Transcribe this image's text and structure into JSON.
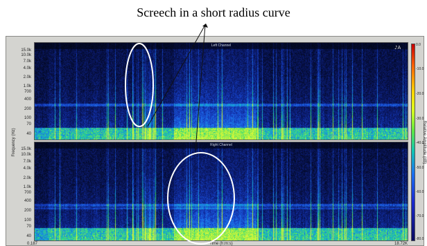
{
  "caption": "Screech in a short radius curve",
  "panels": [
    {
      "title": "Left Channel"
    },
    {
      "title": "Right Channel"
    }
  ],
  "yaxis": {
    "title": "Frequency (Hz)",
    "ticks": [
      "15.0k",
      "10.0k",
      "7.0k",
      "4.0k",
      "2.0k",
      "1.0k",
      "700",
      "400",
      "200",
      "100",
      "70",
      "40"
    ]
  },
  "xaxis": {
    "title": "Time (h:m:s)",
    "start": "0.187",
    "end": "18.72K"
  },
  "colorbar": {
    "title": "Relative Amplitude (dB)",
    "ticks": [
      "0.0",
      "-10.0",
      "-20.0",
      "-30.0",
      "-40.0",
      "-50.0",
      "-60.0",
      "-70.0",
      "-80.0"
    ]
  },
  "colors": {
    "background": "#000510",
    "window": "#d4d4d0"
  },
  "icons": [
    "speaker-icon",
    "text-tool-icon"
  ]
}
